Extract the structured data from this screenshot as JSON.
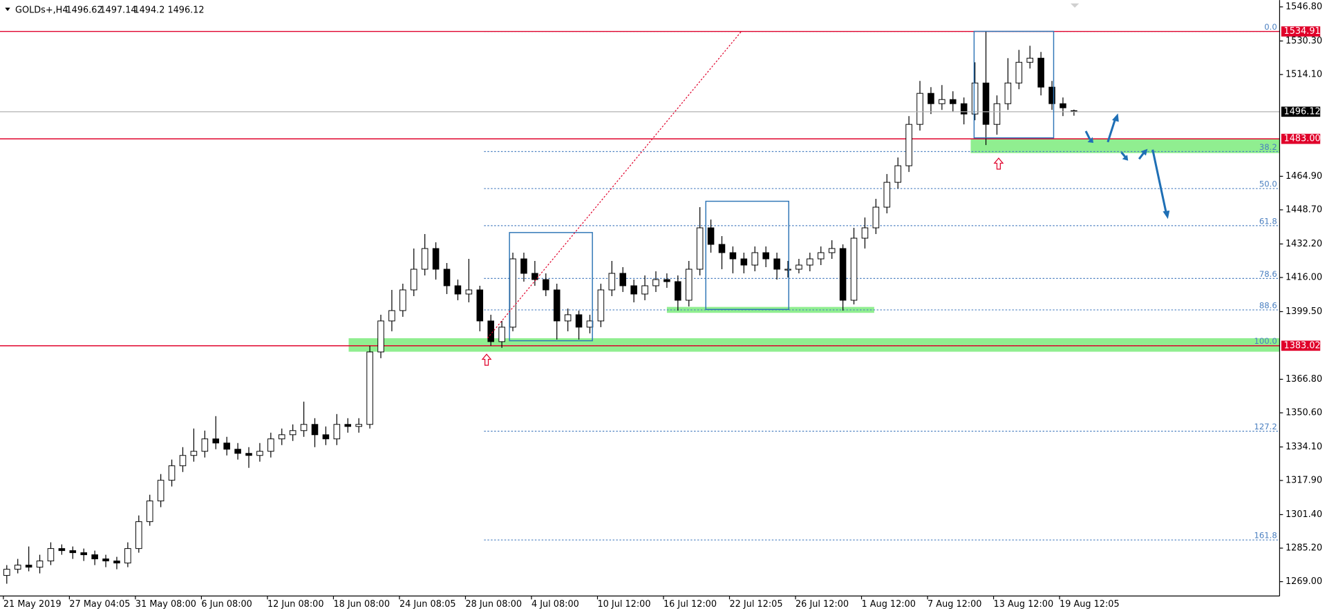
{
  "header": {
    "symbol": "GOLDs+,H4"
  },
  "chart_data": {
    "type": "candlestick",
    "categories": [
      "21 May 2019",
      null,
      null,
      null,
      null,
      null,
      "27 May 04:05",
      null,
      null,
      null,
      null,
      null,
      "31 May 08:00",
      null,
      null,
      null,
      null,
      null,
      "6 Jun 08:00",
      null,
      null,
      null,
      null,
      null,
      "12 Jun 08:00",
      null,
      null,
      null,
      null,
      null,
      "18 Jun 08:00",
      null,
      null,
      null,
      null,
      null,
      "24 Jun 08:05",
      null,
      null,
      null,
      null,
      null,
      "28 Jun 08:00",
      null,
      null,
      null,
      null,
      null,
      "4 Jul 08:00",
      null,
      null,
      null,
      null,
      null,
      "10 Jul 12:00",
      null,
      null,
      null,
      null,
      null,
      "16 Jul 12:00",
      null,
      null,
      null,
      null,
      null,
      "22 Jul 12:05",
      null,
      null,
      null,
      null,
      null,
      "26 Jul 12:00",
      null,
      null,
      null,
      null,
      null,
      "1 Aug 12:00",
      null,
      null,
      null,
      null,
      null,
      "7 Aug 12:00",
      null,
      null,
      null,
      null,
      null,
      "13 Aug 12:00",
      null,
      null,
      null,
      null,
      null,
      "19 Aug 12:05",
      null
    ],
    "open": [
      1272,
      1275,
      1277,
      1276,
      1279,
      1285,
      1284,
      1283,
      1282,
      1280,
      1279,
      1278,
      1285,
      1298,
      1308,
      1318,
      1325,
      1330,
      1332,
      1338,
      1336,
      1333,
      1331,
      1330,
      1332,
      1338,
      1340,
      1342,
      1345,
      1340,
      1338,
      1345,
      1344,
      1345,
      1380,
      1395,
      1400,
      1410,
      1420,
      1430,
      1420,
      1412,
      1408,
      1410,
      1395,
      1385,
      1392,
      1425,
      1418,
      1415,
      1410,
      1395,
      1398,
      1392,
      1395,
      1410,
      1418,
      1412,
      1408,
      1412,
      1415,
      1414,
      1405,
      1420,
      1440,
      1432,
      1428,
      1425,
      1422,
      1428,
      1425,
      1420,
      1420,
      1422,
      1425,
      1428,
      1430,
      1405,
      1435,
      1440,
      1450,
      1462,
      1470,
      1490,
      1505,
      1500,
      1502,
      1500,
      1495,
      1510,
      1490,
      1500,
      1510,
      1520,
      1522,
      1508,
      1500,
      1496.62
    ],
    "high": [
      1277,
      1280,
      1286,
      1282,
      1288,
      1287,
      1286,
      1285,
      1284,
      1282,
      1281,
      1288,
      1301,
      1311,
      1321,
      1328,
      1334,
      1343,
      1342,
      1349,
      1339,
      1336,
      1334,
      1336,
      1341,
      1343,
      1345,
      1356,
      1348,
      1344,
      1350,
      1348,
      1348,
      1383,
      1398,
      1410,
      1413,
      1430,
      1437,
      1433,
      1423,
      1415,
      1425,
      1412,
      1398,
      1395,
      1428,
      1428,
      1424,
      1418,
      1413,
      1401,
      1400,
      1398,
      1413,
      1424,
      1421,
      1415,
      1417,
      1419,
      1418,
      1417,
      1424,
      1450,
      1444,
      1436,
      1431,
      1428,
      1431,
      1431,
      1428,
      1424,
      1425,
      1428,
      1431,
      1434,
      1432,
      1440,
      1445,
      1454,
      1466,
      1474,
      1494,
      1511,
      1508,
      1509,
      1506,
      1503,
      1520,
      1535,
      1504,
      1522,
      1526,
      1528,
      1525,
      1511,
      1503,
      1497.14
    ],
    "low": [
      1268,
      1273,
      1274,
      1273,
      1277,
      1282,
      1280,
      1279,
      1277,
      1276,
      1275,
      1276,
      1283,
      1296,
      1305,
      1315,
      1322,
      1327,
      1329,
      1333,
      1330,
      1328,
      1324,
      1327,
      1329,
      1335,
      1337,
      1339,
      1334,
      1335,
      1335,
      1341,
      1341,
      1343,
      1377,
      1390,
      1397,
      1407,
      1417,
      1415,
      1408,
      1405,
      1404,
      1390,
      1383,
      1382,
      1390,
      1414,
      1412,
      1407,
      1386,
      1390,
      1386,
      1389,
      1392,
      1407,
      1409,
      1404,
      1405,
      1409,
      1411,
      1400,
      1402,
      1417,
      1428,
      1420,
      1418,
      1418,
      1419,
      1421,
      1415,
      1416,
      1418,
      1419,
      1422,
      1425,
      1400,
      1403,
      1430,
      1437,
      1447,
      1459,
      1467,
      1487,
      1495,
      1497,
      1496,
      1490,
      1492,
      1480,
      1485,
      1497,
      1507,
      1517,
      1504,
      1497,
      1494,
      1494.2
    ],
    "close": [
      1275,
      1277,
      1276,
      1279,
      1285,
      1284,
      1283,
      1282,
      1280,
      1279,
      1278,
      1285,
      1298,
      1308,
      1318,
      1325,
      1330,
      1332,
      1338,
      1336,
      1333,
      1331,
      1330,
      1332,
      1338,
      1340,
      1342,
      1345,
      1340,
      1338,
      1345,
      1344,
      1345,
      1380,
      1395,
      1400,
      1410,
      1420,
      1430,
      1420,
      1412,
      1408,
      1410,
      1395,
      1385,
      1392,
      1425,
      1418,
      1415,
      1410,
      1395,
      1398,
      1392,
      1395,
      1410,
      1418,
      1412,
      1408,
      1412,
      1415,
      1414,
      1405,
      1420,
      1440,
      1432,
      1428,
      1425,
      1422,
      1428,
      1425,
      1420,
      1420,
      1422,
      1425,
      1428,
      1430,
      1405,
      1435,
      1440,
      1450,
      1462,
      1470,
      1490,
      1505,
      1500,
      1502,
      1500,
      1495,
      1510,
      1490,
      1500,
      1510,
      1520,
      1522,
      1508,
      1500,
      1498,
      1496.12
    ],
    "ylim": [
      1262.06,
      1550.07
    ],
    "yticks": [
      {
        "value": 1546.8,
        "label": "1546.80"
      },
      {
        "value": 1530.3,
        "label": "1530.30"
      },
      {
        "value": 1514.1,
        "label": "1514.10"
      },
      {
        "value": 1464.9,
        "label": "1464.90"
      },
      {
        "value": 1448.7,
        "label": "1448.70"
      },
      {
        "value": 1432.2,
        "label": "1432.20"
      },
      {
        "value": 1416,
        "label": "1416.00"
      },
      {
        "value": 1399.5,
        "label": "1399.50"
      },
      {
        "value": 1366.8,
        "label": "1366.80"
      },
      {
        "value": 1350.6,
        "label": "1350.60"
      },
      {
        "value": 1334.1,
        "label": "1334.10"
      },
      {
        "value": 1317.9,
        "label": "1317.90"
      },
      {
        "value": 1301.4,
        "label": "1301.40"
      },
      {
        "value": 1285.2,
        "label": "1285.20"
      },
      {
        "value": 1269,
        "label": "1269.00"
      }
    ],
    "levels": [
      {
        "value": 1534.91,
        "label": "1534.91",
        "color": "#e0002a"
      },
      {
        "value": 1483,
        "label": "1483.00",
        "color": "#e0002a"
      },
      {
        "value": 1383.02,
        "label": "1383.02",
        "color": "#e0002a"
      }
    ],
    "fibo": {
      "high": 1534.91,
      "low": 1383.02,
      "color": "#4a7fc0",
      "levels": [
        {
          "value": 0,
          "label": "0.0"
        },
        38.2,
        {
          "value": 50,
          "label": "50.0"
        },
        61.8,
        78.6,
        88.6,
        {
          "value": 100,
          "label": "100.0"
        },
        127.2,
        161.8
      ]
    },
    "bull_color": "#ffffff",
    "bear_color": "#000000"
  }
}
